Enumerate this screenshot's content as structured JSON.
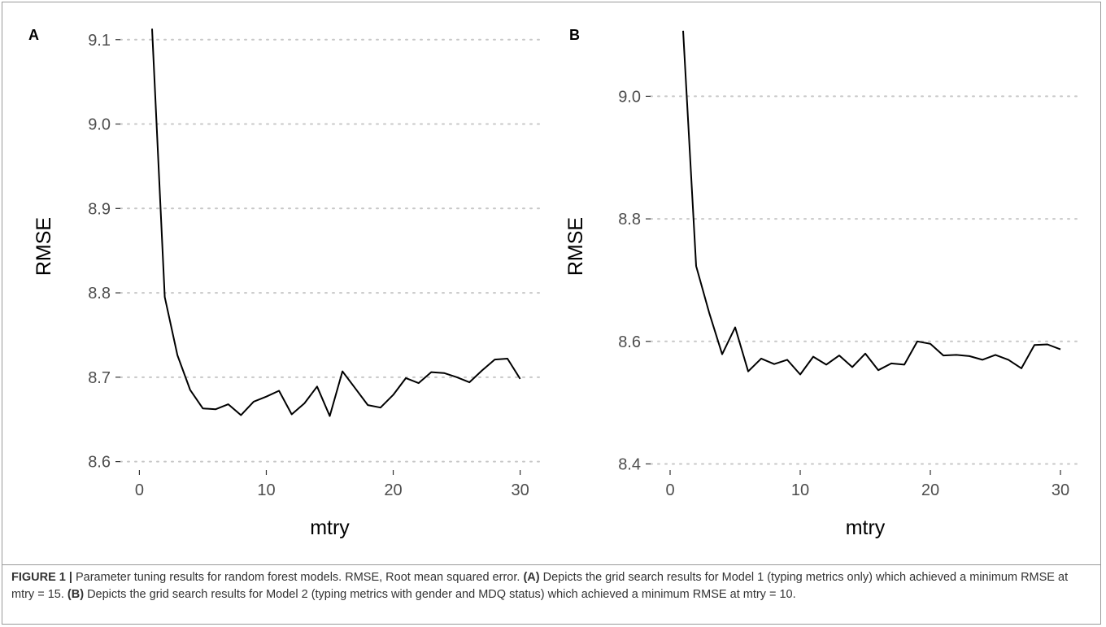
{
  "chart_data": [
    {
      "type": "line",
      "panel_label": "A",
      "xlabel": "mtry",
      "ylabel": "RMSE",
      "xlim": [
        -1.5,
        31.5
      ],
      "ylim": [
        8.59,
        9.12
      ],
      "x_ticks": [
        0,
        10,
        20,
        30
      ],
      "x_tick_labels": [
        "0",
        "10",
        "20",
        "30"
      ],
      "y_ticks": [
        8.6,
        8.7,
        8.8,
        8.9,
        9.0,
        9.1
      ],
      "y_tick_labels": [
        "8.6",
        "8.7",
        "8.8",
        "8.9",
        "9.0",
        "9.1"
      ],
      "grid": "horizontal dotted",
      "x": [
        1,
        2,
        3,
        4,
        5,
        6,
        7,
        8,
        9,
        10,
        11,
        12,
        13,
        14,
        15,
        16,
        17,
        18,
        19,
        20,
        21,
        22,
        23,
        24,
        25,
        26,
        27,
        28,
        29,
        30
      ],
      "y": [
        9.113,
        8.795,
        8.726,
        8.685,
        8.663,
        8.662,
        8.668,
        8.655,
        8.671,
        8.677,
        8.684,
        8.656,
        8.669,
        8.689,
        8.654,
        8.707,
        8.687,
        8.667,
        8.664,
        8.679,
        8.699,
        8.693,
        8.706,
        8.705,
        8.7,
        8.694,
        8.708,
        8.721,
        8.722,
        8.698
      ]
    },
    {
      "type": "line",
      "panel_label": "B",
      "xlabel": "mtry",
      "ylabel": "RMSE",
      "xlim": [
        -1.5,
        31.5
      ],
      "ylim": [
        8.39,
        9.12
      ],
      "x_ticks": [
        0,
        10,
        20,
        30
      ],
      "x_tick_labels": [
        "0",
        "10",
        "20",
        "30"
      ],
      "y_ticks": [
        8.4,
        8.6,
        8.8,
        9.0
      ],
      "y_tick_labels": [
        "8.4",
        "8.6",
        "8.8",
        "9.0"
      ],
      "grid": "horizontal dotted",
      "x": [
        1,
        2,
        3,
        4,
        5,
        6,
        7,
        8,
        9,
        10,
        11,
        12,
        13,
        14,
        15,
        16,
        17,
        18,
        19,
        20,
        21,
        22,
        23,
        24,
        25,
        26,
        27,
        28,
        29,
        30
      ],
      "y": [
        9.107,
        8.723,
        8.647,
        8.579,
        8.623,
        8.551,
        8.572,
        8.563,
        8.57,
        8.546,
        8.575,
        8.562,
        8.577,
        8.558,
        8.58,
        8.553,
        8.564,
        8.562,
        8.6,
        8.596,
        8.577,
        8.578,
        8.576,
        8.57,
        8.578,
        8.57,
        8.556,
        8.594,
        8.595,
        8.587
      ]
    }
  ],
  "caption": {
    "figure_label": "FIGURE 1 |",
    "intro": " Parameter tuning results for random forest models. RMSE, Root mean squared error. ",
    "a_label": "(A)",
    "a_text": " Depicts the grid search results for Model 1 (typing metrics only) which achieved a minimum RMSE at mtry = 15. ",
    "b_label": "(B)",
    "b_text": " Depicts the grid search results for Model 2 (typing metrics with gender and MDQ status) which achieved a minimum RMSE at mtry = 10."
  }
}
